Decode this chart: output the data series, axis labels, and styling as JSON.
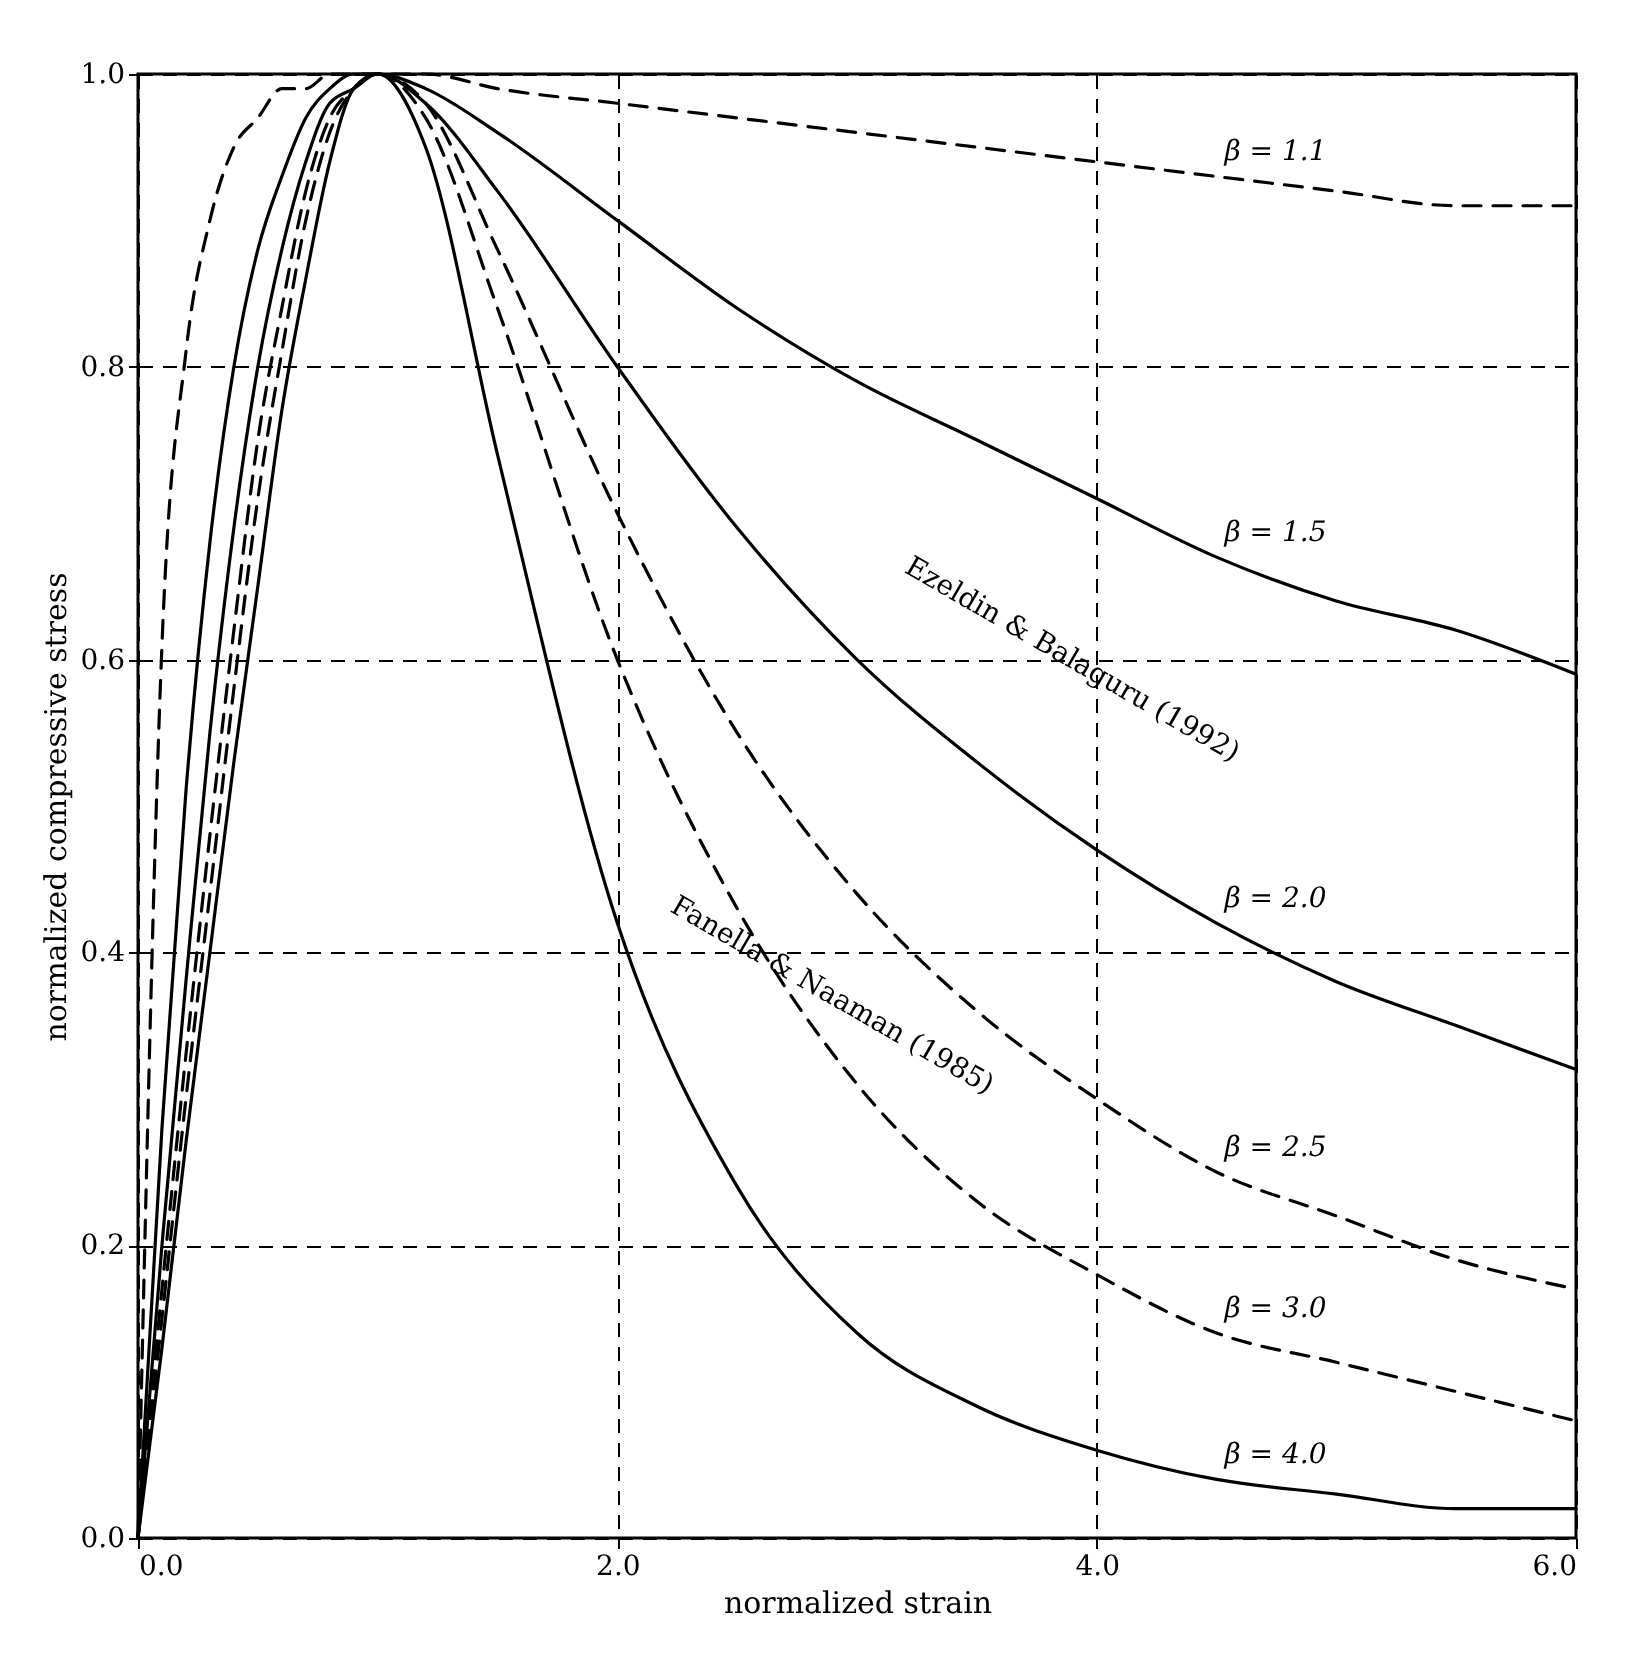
{
  "chart_data": {
    "type": "line",
    "xlabel": "normalized strain",
    "ylabel": "normalized compressive stress",
    "x": [
      0,
      0.1,
      0.2,
      0.3,
      0.4,
      0.5,
      0.6,
      0.7,
      0.8,
      0.9,
      1.0,
      1.2,
      1.5,
      2.0,
      2.5,
      3.0,
      3.5,
      4.0,
      4.5,
      5.0,
      5.5,
      6.0
    ],
    "series": [
      {
        "name": "β = 1.1",
        "color": "#000000",
        "line_style": "dashed",
        "values": [
          0,
          0.61,
          0.81,
          0.9,
          0.95,
          0.97,
          0.99,
          0.99,
          1.0,
          1.0,
          1.0,
          1.0,
          0.99,
          0.98,
          0.97,
          0.96,
          0.95,
          0.94,
          0.93,
          0.92,
          0.91,
          0.91
        ]
      },
      {
        "name": "β = 1.5",
        "color": "#000000",
        "line_style": "solid",
        "values": [
          0,
          0.28,
          0.51,
          0.68,
          0.8,
          0.88,
          0.93,
          0.97,
          0.99,
          1.0,
          1.0,
          0.99,
          0.96,
          0.9,
          0.84,
          0.79,
          0.75,
          0.71,
          0.67,
          0.64,
          0.62,
          0.59
        ]
      },
      {
        "name": "β = 2.0",
        "color": "#000000",
        "line_style": "solid",
        "values": [
          0,
          0.2,
          0.38,
          0.55,
          0.69,
          0.8,
          0.88,
          0.94,
          0.98,
          0.99,
          1.0,
          0.98,
          0.92,
          0.8,
          0.69,
          0.6,
          0.53,
          0.47,
          0.42,
          0.38,
          0.35,
          0.32
        ]
      },
      {
        "name": "β = 2.5",
        "color": "#000000",
        "line_style": "dashed",
        "values": [
          0,
          0.17,
          0.33,
          0.48,
          0.62,
          0.75,
          0.84,
          0.92,
          0.97,
          0.99,
          1.0,
          0.98,
          0.88,
          0.7,
          0.55,
          0.44,
          0.36,
          0.3,
          0.25,
          0.22,
          0.19,
          0.17
        ]
      },
      {
        "name": "β = 3.0",
        "color": "#000000",
        "line_style": "dashed",
        "values": [
          0,
          0.15,
          0.3,
          0.44,
          0.58,
          0.71,
          0.81,
          0.9,
          0.96,
          0.99,
          1.0,
          0.97,
          0.84,
          0.6,
          0.43,
          0.31,
          0.23,
          0.18,
          0.14,
          0.12,
          0.1,
          0.08
        ]
      },
      {
        "name": "β = 4.0",
        "color": "#000000",
        "line_style": "solid",
        "values": [
          0,
          0.13,
          0.27,
          0.4,
          0.53,
          0.65,
          0.77,
          0.86,
          0.94,
          0.99,
          1.0,
          0.95,
          0.74,
          0.42,
          0.24,
          0.14,
          0.09,
          0.06,
          0.04,
          0.03,
          0.02,
          0.02
        ]
      }
    ],
    "xlim": [
      0,
      6
    ],
    "xticks": [
      {
        "value": 0,
        "label": "0.0"
      },
      {
        "value": 2,
        "label": "2.0"
      },
      {
        "value": 4,
        "label": "4.0"
      },
      {
        "value": 6,
        "label": "6.0"
      }
    ],
    "ylim": [
      0,
      1
    ],
    "yticks": [
      {
        "value": 0,
        "label": "0.0"
      },
      {
        "value": 0.2,
        "label": "0.2"
      },
      {
        "value": 0.4,
        "label": "0.4"
      },
      {
        "value": 0.6,
        "label": "0.6"
      },
      {
        "value": 0.8,
        "label": "0.8"
      },
      {
        "value": 1,
        "label": "1.0"
      }
    ],
    "grid": true,
    "annotations": [
      "Fanella & Naaman (1985)",
      "Ezeldin & Balaguru (1992)"
    ]
  }
}
